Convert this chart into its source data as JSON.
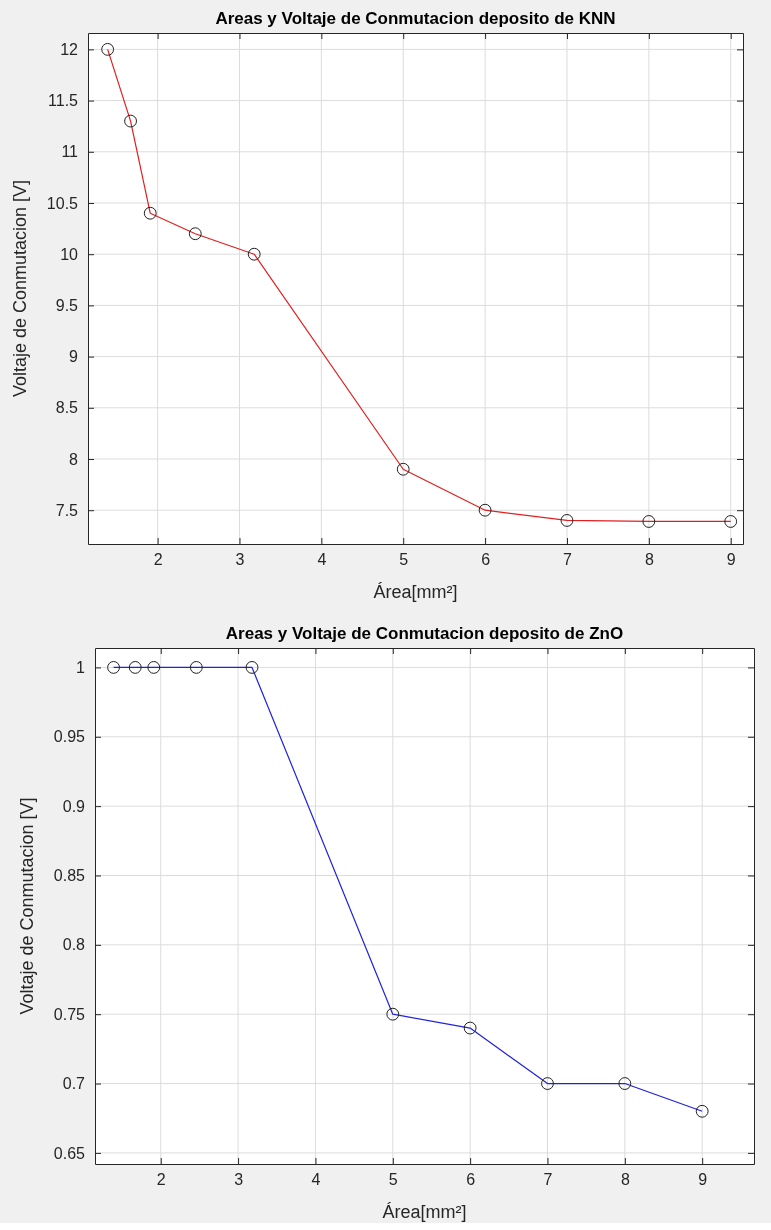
{
  "chart_data": [
    {
      "type": "line",
      "title": "Areas y Voltaje de Conmutacion deposito de KNN",
      "xlabel": "Área[mm²]",
      "ylabel": "Voltaje de Conmutacion [V]",
      "x": [
        1.39,
        1.67,
        1.91,
        2.46,
        3.18,
        5,
        6,
        7,
        8,
        9
      ],
      "series": [
        {
          "color": "#e02020",
          "values": [
            12,
            11.3,
            10.4,
            10.2,
            10.0,
            7.9,
            7.5,
            7.4,
            7.39,
            7.39
          ]
        }
      ],
      "xlim": [
        1.15,
        9.15
      ],
      "xticks": [
        2,
        3,
        4,
        5,
        6,
        7,
        8,
        9
      ],
      "ylim": [
        7.17,
        12.16
      ],
      "yticks": [
        7.5,
        8,
        8.5,
        9,
        9.5,
        10,
        10.5,
        11,
        11.5,
        12
      ],
      "grid": true,
      "marker": "circle",
      "line_style": "solid"
    },
    {
      "type": "line",
      "title": "Areas y Voltaje de Conmutacion deposito de ZnO",
      "xlabel": "Área[mm²]",
      "ylabel": "Voltaje de Conmutacion [V]",
      "x": [
        1.39,
        1.67,
        1.91,
        2.46,
        3.18,
        5,
        6,
        7,
        8,
        9
      ],
      "series": [
        {
          "color": "#2020e0",
          "values": [
            1,
            1,
            1,
            1,
            1,
            0.75,
            0.74,
            0.7,
            0.7,
            0.68
          ]
        }
      ],
      "xlim": [
        1.15,
        9.67
      ],
      "xticks": [
        2,
        3,
        4,
        5,
        6,
        7,
        8,
        9
      ],
      "ylim": [
        0.642,
        1.014
      ],
      "yticks": [
        0.65,
        0.7,
        0.75,
        0.8,
        0.85,
        0.9,
        0.95,
        1
      ],
      "grid": true,
      "marker": "circle",
      "line_style": "solid"
    }
  ]
}
